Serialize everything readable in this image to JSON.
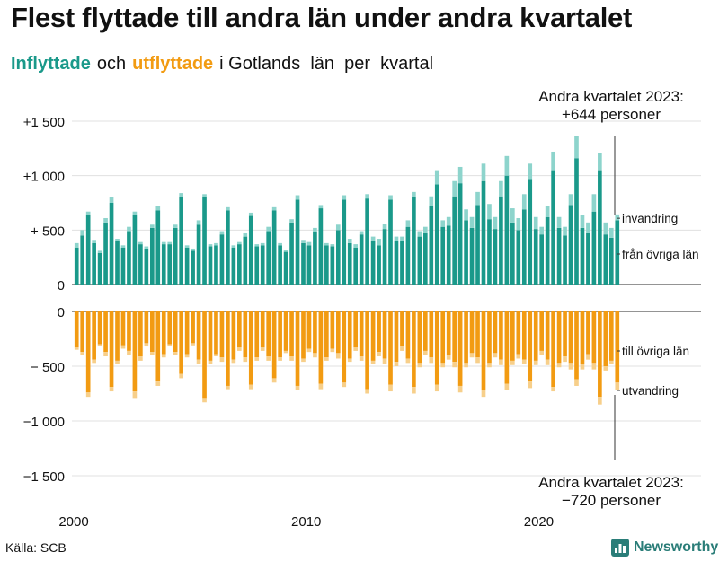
{
  "title": "Flest flyttade till andra län under andra kvartalet",
  "subtitle": {
    "in_label": "Inflyttade",
    "and_label": "och",
    "out_label": "utflyttade",
    "rest": "i Gotlands  län  per  kvartal"
  },
  "source": "Källa: SCB",
  "brand": "Newsworthy",
  "colors": {
    "in_main": "#1a998a",
    "in_extra": "#8dd4cc",
    "out_main": "#f29b12",
    "out_extra": "#f7cf8a",
    "grid": "#e0e0e0"
  },
  "annotations": {
    "top": [
      "Andra kvartalet 2023:",
      "+644 personer"
    ],
    "bottom": [
      "Andra kvartalet 2023:",
      "−720 personer"
    ]
  },
  "chart_data": {
    "type": "bar",
    "title": "Flest flyttade till andra län under andra kvartalet",
    "x_ticks": [
      "2000",
      "2010",
      "2020"
    ],
    "x_tick_values": [
      2000,
      2010,
      2020
    ],
    "top_panel": {
      "ylim": [
        0,
        1500
      ],
      "y_ticks": [
        0,
        500,
        1000,
        1500
      ],
      "y_tick_labels": [
        "0",
        "+  500",
        "+1 000",
        "+1 500"
      ],
      "labels": {
        "extra": "invandring",
        "main": "från övriga län"
      }
    },
    "bottom_panel": {
      "ylim": [
        -1500,
        0
      ],
      "y_ticks": [
        0,
        -500,
        -1000,
        -1500
      ],
      "y_tick_labels": [
        "0",
        "−  500",
        "−1 000",
        "−1 500"
      ],
      "labels": {
        "main": "till övriga län",
        "extra": "utvandring"
      }
    },
    "series": [
      {
        "name": "från övriga län",
        "panel": "top",
        "values": [
          340,
          450,
          640,
          380,
          290,
          570,
          750,
          400,
          340,
          490,
          640,
          370,
          330,
          520,
          680,
          370,
          370,
          520,
          800,
          340,
          310,
          550,
          800,
          350,
          360,
          460,
          680,
          340,
          370,
          440,
          630,
          350,
          360,
          490,
          680,
          360,
          300,
          570,
          780,
          380,
          360,
          480,
          700,
          360,
          350,
          500,
          780,
          380,
          340,
          460,
          790,
          400,
          360,
          510,
          780,
          400,
          400,
          530,
          800,
          440,
          470,
          720,
          920,
          530,
          540,
          810,
          930,
          590,
          520,
          730,
          950,
          600,
          510,
          810,
          1000,
          570,
          500,
          690,
          970,
          510,
          460,
          620,
          1050,
          520,
          450,
          730,
          1160,
          520,
          470,
          670,
          1050,
          460,
          430,
          590
        ]
      },
      {
        "name": "invandring",
        "panel": "top",
        "values": [
          40,
          50,
          30,
          30,
          20,
          40,
          50,
          20,
          20,
          40,
          30,
          20,
          20,
          30,
          40,
          20,
          20,
          30,
          40,
          20,
          20,
          40,
          30,
          20,
          20,
          30,
          30,
          20,
          20,
          30,
          30,
          20,
          20,
          40,
          30,
          20,
          20,
          30,
          40,
          30,
          30,
          40,
          30,
          20,
          20,
          50,
          40,
          40,
          30,
          30,
          40,
          40,
          60,
          50,
          40,
          40,
          40,
          60,
          50,
          50,
          60,
          90,
          130,
          60,
          80,
          140,
          150,
          100,
          100,
          120,
          160,
          140,
          110,
          140,
          180,
          130,
          110,
          140,
          140,
          110,
          70,
          100,
          170,
          100,
          80,
          100,
          200,
          120,
          100,
          160,
          160,
          110,
          90,
          54
        ]
      },
      {
        "name": "till övriga län",
        "panel": "bottom",
        "values": [
          -330,
          -370,
          -740,
          -440,
          -300,
          -370,
          -690,
          -450,
          -310,
          -360,
          -730,
          -410,
          -290,
          -370,
          -640,
          -390,
          -300,
          -370,
          -570,
          -390,
          -290,
          -440,
          -790,
          -450,
          -390,
          -420,
          -680,
          -440,
          -330,
          -420,
          -670,
          -420,
          -330,
          -410,
          -610,
          -420,
          -360,
          -410,
          -680,
          -430,
          -340,
          -380,
          -660,
          -420,
          -340,
          -380,
          -650,
          -430,
          -330,
          -410,
          -710,
          -450,
          -370,
          -430,
          -670,
          -460,
          -320,
          -430,
          -690,
          -470,
          -360,
          -420,
          -670,
          -470,
          -400,
          -460,
          -680,
          -470,
          -380,
          -420,
          -720,
          -470,
          -380,
          -440,
          -660,
          -450,
          -390,
          -440,
          -640,
          -450,
          -360,
          -440,
          -690,
          -470,
          -410,
          -470,
          -620,
          -480,
          -390,
          -470,
          -780,
          -500,
          -450,
          -650
        ]
      },
      {
        "name": "utvandring",
        "panel": "bottom",
        "values": [
          -20,
          -30,
          -40,
          -30,
          -20,
          -40,
          -40,
          -30,
          -30,
          -40,
          -60,
          -40,
          -30,
          -30,
          -40,
          -30,
          -20,
          -30,
          -40,
          -30,
          -20,
          -40,
          -40,
          -30,
          -20,
          -40,
          -30,
          -30,
          -30,
          -40,
          -40,
          -30,
          -30,
          -40,
          -40,
          -30,
          -20,
          -40,
          -40,
          -30,
          -30,
          -40,
          -50,
          -30,
          -30,
          -50,
          -40,
          -30,
          -30,
          -40,
          -40,
          -30,
          -40,
          -50,
          -60,
          -40,
          -40,
          -40,
          -60,
          -40,
          -40,
          -50,
          -60,
          -40,
          -40,
          -50,
          -60,
          -40,
          -40,
          -50,
          -60,
          -40,
          -40,
          -50,
          -60,
          -40,
          -40,
          -40,
          -60,
          -40,
          -40,
          -50,
          -40,
          -40,
          -50,
          -60,
          -60,
          -50,
          -50,
          -60,
          -70,
          -40,
          -30,
          -70
        ]
      }
    ],
    "n_quarters": 94,
    "start": "2000 Q1",
    "end": "2023 Q2"
  }
}
